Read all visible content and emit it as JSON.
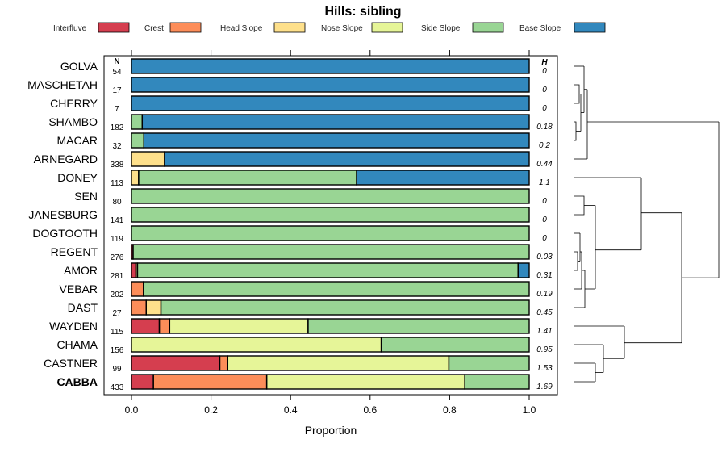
{
  "chart_data": {
    "type": "bar",
    "orientation": "horizontal",
    "stacked": true,
    "title": "Hills: sibling",
    "xlabel": "Proportion",
    "ylabel": "",
    "xlim": [
      0,
      1
    ],
    "xticks": [
      "0.0",
      "0.2",
      "0.4",
      "0.6",
      "0.8",
      "1.0"
    ],
    "n_header": "N",
    "h_header": "H",
    "legend": [
      "Interfluve",
      "Crest",
      "Head Slope",
      "Nose Slope",
      "Side Slope",
      "Base Slope"
    ],
    "colors": [
      "#d53e4f",
      "#fc8d59",
      "#fee08b",
      "#e6f598",
      "#99d594",
      "#3288bd"
    ],
    "categories": [
      "GOLVA",
      "MASCHETAH",
      "CHERRY",
      "SHAMBO",
      "MACAR",
      "ARNEGARD",
      "DONEY",
      "SEN",
      "JANESBURG",
      "DOGTOOTH",
      "REGENT",
      "AMOR",
      "VEBAR",
      "DAST",
      "WAYDEN",
      "CHAMA",
      "CASTNER",
      "CABBA"
    ],
    "highlight": "CABBA",
    "n": [
      "54",
      "17",
      "7",
      "182",
      "32",
      "338",
      "113",
      "80",
      "141",
      "119",
      "276",
      "281",
      "202",
      "27",
      "115",
      "156",
      "99",
      "433"
    ],
    "h": [
      "0",
      "0",
      "0",
      "0.18",
      "0.2",
      "0.44",
      "1.1",
      "0",
      "0",
      "0",
      "0.03",
      "0.31",
      "0.19",
      "0.45",
      "1.41",
      "0.95",
      "1.53",
      "1.69"
    ],
    "series": [
      {
        "name": "Interfluve",
        "values": [
          0,
          0,
          0,
          0,
          0,
          0,
          0,
          0,
          0,
          0,
          0.004,
          0.011,
          0,
          0,
          0.07,
          0,
          0.222,
          0.055
        ]
      },
      {
        "name": "Crest",
        "values": [
          0,
          0,
          0,
          0,
          0,
          0,
          0,
          0,
          0,
          0,
          0,
          0,
          0.03,
          0.037,
          0.026,
          0,
          0.02,
          0.285
        ]
      },
      {
        "name": "Head Slope",
        "values": [
          0,
          0,
          0,
          0,
          0,
          0.083,
          0.018,
          0,
          0,
          0,
          0,
          0,
          0,
          0.037,
          0,
          0,
          0,
          0
        ]
      },
      {
        "name": "Nose Slope",
        "values": [
          0,
          0,
          0,
          0,
          0,
          0,
          0,
          0,
          0,
          0,
          0,
          0.004,
          0,
          0,
          0.348,
          0.628,
          0.556,
          0.498
        ]
      },
      {
        "name": "Side Slope",
        "values": [
          0,
          0,
          0,
          0.027,
          0.031,
          0,
          0.548,
          1,
          1,
          1,
          0.996,
          0.957,
          0.97,
          0.926,
          0.556,
          0.372,
          0.202,
          0.162
        ]
      },
      {
        "name": "Base Slope",
        "values": [
          1,
          1,
          1,
          0.973,
          0.969,
          0.917,
          0.434,
          0,
          0,
          0,
          0,
          0.028,
          0,
          0,
          0,
          0,
          0,
          0
        ]
      }
    ]
  }
}
